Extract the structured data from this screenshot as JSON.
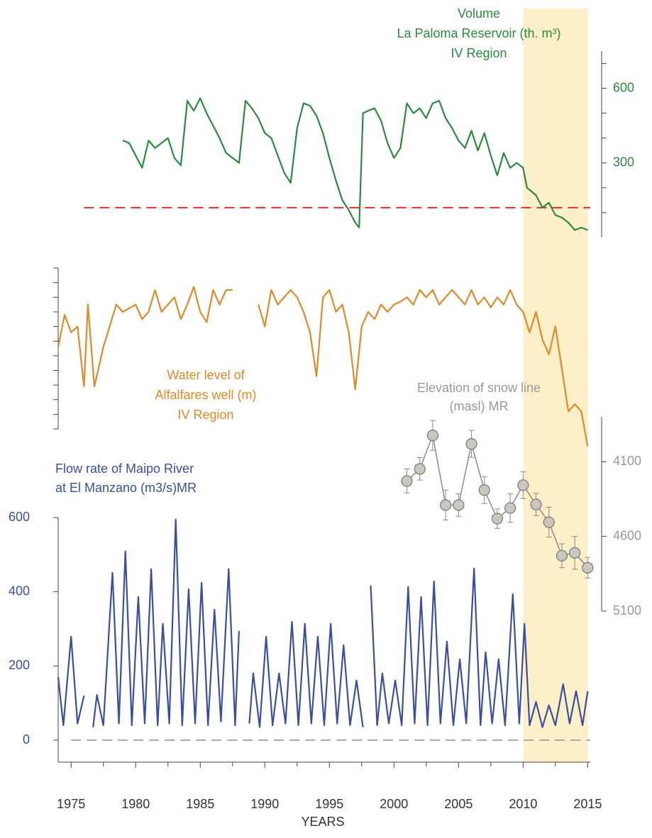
{
  "chart_data": [
    {
      "type": "line",
      "title_lines": [
        "Volume",
        "La Paloma Reservoir (th. m³)",
        "IV Region"
      ],
      "color": "#2a8a3e",
      "axis_side": "right",
      "ylim": [
        0,
        750
      ],
      "yticks": [
        300,
        600
      ],
      "yminorticks": [
        100,
        200,
        400,
        500,
        700
      ],
      "reference_line": 120,
      "reference_color": "#d9322b",
      "reference_from": 1976,
      "x": [
        1979,
        1979.5,
        1980,
        1980.5,
        1981,
        1981.5,
        1982,
        1982.5,
        1983,
        1983.5,
        1984,
        1984.5,
        1985,
        1985.5,
        1986,
        1986.5,
        1987,
        1987.5,
        1988,
        1988.5,
        1989,
        1989.5,
        1990,
        1990.5,
        1991,
        1991.5,
        1992,
        1992.5,
        1993,
        1993.5,
        1994,
        1994.5,
        1995,
        1995.5,
        1996,
        1996.5,
        1997,
        1997.3,
        1997.6,
        1998,
        1998.5,
        1999,
        1999.5,
        2000,
        2000.5,
        2001,
        2001.5,
        2002,
        2002.5,
        2003,
        2003.5,
        2004,
        2004.5,
        2005,
        2005.5,
        2006,
        2006.5,
        2007,
        2007.5,
        2008,
        2008.5,
        2009,
        2009.5,
        2010,
        2010.3,
        2011,
        2011.5,
        2012,
        2012.5,
        2013,
        2013.5,
        2014,
        2014.5,
        2015
      ],
      "values": [
        390,
        380,
        330,
        280,
        390,
        360,
        380,
        400,
        320,
        290,
        550,
        510,
        560,
        500,
        450,
        400,
        340,
        320,
        300,
        550,
        520,
        480,
        420,
        400,
        330,
        260,
        220,
        440,
        540,
        530,
        490,
        420,
        320,
        230,
        150,
        110,
        60,
        40,
        500,
        510,
        520,
        470,
        380,
        320,
        360,
        540,
        500,
        520,
        480,
        540,
        550,
        480,
        440,
        390,
        360,
        430,
        350,
        420,
        330,
        250,
        340,
        280,
        300,
        280,
        200,
        170,
        120,
        140,
        90,
        80,
        60,
        30,
        40,
        30
      ]
    },
    {
      "type": "line",
      "title_lines": [
        "Water level of",
        "Alfalfares well (m)",
        "IV Region"
      ],
      "color": "#e0892a",
      "axis_side": "left",
      "tick_labels": false,
      "ylim": [
        -1.5,
        11
      ],
      "yticks": [
        0,
        1,
        2,
        3,
        4,
        5,
        6,
        7,
        8,
        9,
        10,
        11
      ],
      "x": [
        1974,
        1974.5,
        1975,
        1975.5,
        1976,
        1976.3,
        1976.8,
        1977.5,
        1978.5,
        1979,
        1980,
        1980.5,
        1981,
        1981.5,
        1982,
        1983,
        1983.5,
        1984,
        1984.5,
        1985,
        1985.5,
        1986,
        1986.5,
        1987,
        1987.5,
        1988.5,
        1989.5,
        1990,
        1990.5,
        1991,
        1991.5,
        1992,
        1992.5,
        1993,
        1993.5,
        1994,
        1994.5,
        1995,
        1995.5,
        1996,
        1996.5,
        1997,
        1997.5,
        1998,
        1998.5,
        1999,
        1999.5,
        2000,
        2000.5,
        2001,
        2001.5,
        2002,
        2002.5,
        2003,
        2003.5,
        2004,
        2004.5,
        2005,
        2005.5,
        2006,
        2006.5,
        2007,
        2007.5,
        2008,
        2008.5,
        2009,
        2009.5,
        2010,
        2010.5,
        2011,
        2011.5,
        2012,
        2012.5,
        2013,
        2013.5,
        2014,
        2014.5,
        2015
      ],
      "values": [
        5.6,
        7.8,
        6.6,
        7.0,
        2.9,
        8.5,
        2.9,
        5.6,
        8.5,
        8.0,
        8.5,
        7.5,
        8.0,
        9.5,
        8.0,
        9.0,
        7.5,
        8.5,
        9.7,
        8.0,
        7.3,
        9.5,
        8.5,
        9.5,
        9.5,
        null,
        8.5,
        7.0,
        9.5,
        8.5,
        9.0,
        9.5,
        9.0,
        8.0,
        6.6,
        3.6,
        9.0,
        9.5,
        8.0,
        8.5,
        6.6,
        2.7,
        7.0,
        8.0,
        7.5,
        8.5,
        8.0,
        8.5,
        8.7,
        9.0,
        8.5,
        9.5,
        9.0,
        9.5,
        8.5,
        9.0,
        9.5,
        9.0,
        8.5,
        9.5,
        8.5,
        9.0,
        8.3,
        9.0,
        8.5,
        9.5,
        8.5,
        8.0,
        6.6,
        8.0,
        6.1,
        5.1,
        7.0,
        4.1,
        1.2,
        1.7,
        1.2,
        -1.2
      ]
    },
    {
      "type": "errorline",
      "title_lines": [
        "Elevation of snow line",
        "(masl) MR"
      ],
      "color": "#8a8a8a",
      "marker_color": "#c8c8c0",
      "axis_side": "right",
      "inverted": true,
      "ylim": [
        3800,
        5100
      ],
      "yticks": [
        4100,
        4600,
        5100
      ],
      "x": [
        2001,
        2002,
        2003,
        2004,
        2005,
        2006,
        2007,
        2008,
        2009,
        2010,
        2011,
        2012,
        2013,
        2014,
        2015
      ],
      "values": [
        4229,
        4148,
        3924,
        4390,
        4390,
        3981,
        4290,
        4481,
        4410,
        4257,
        4386,
        4505,
        4729,
        4710,
        4810
      ],
      "errors": [
        80,
        75,
        100,
        100,
        75,
        90,
        90,
        65,
        95,
        90,
        75,
        100,
        80,
        110,
        70
      ]
    },
    {
      "type": "line",
      "title_lines": [
        "Flow rate of Maipo River",
        "at El Manzano (m3/s)MR"
      ],
      "color": "#3a4fa0",
      "axis_side": "left",
      "ylim": [
        0,
        600
      ],
      "yticks": [
        0,
        200,
        400,
        600
      ],
      "reference_line": 0,
      "reference_color": "#aaaaaa",
      "reference_from": 1975,
      "xlim": [
        1974,
        2015.2
      ],
      "xticks": [
        1975,
        1980,
        1985,
        1990,
        1995,
        2000,
        2005,
        2010,
        2015
      ],
      "xminorticks": [
        1977.5,
        1982.5,
        1987.5,
        1992.5,
        1997.5,
        2002.5,
        2007.5,
        2012.5
      ],
      "xlabel": "YEARS",
      "highlight": [
        2010,
        2015
      ],
      "highlight_color": "#fdefc8",
      "x": [
        1974.0,
        1974.4,
        1975.0,
        1975.5,
        1976.0,
        1976.3,
        1976.7,
        1977.0,
        1977.5,
        1978.2,
        1978.7,
        1979.2,
        1979.7,
        1980.2,
        1980.7,
        1981.2,
        1981.7,
        1982.1,
        1982.6,
        1983.1,
        1983.6,
        1984.1,
        1984.6,
        1985.1,
        1985.6,
        1986.1,
        1986.6,
        1987.2,
        1987.7,
        1988.0,
        1988.4,
        1988.8,
        1989.1,
        1989.6,
        1990.1,
        1990.6,
        1991.1,
        1991.6,
        1992.1,
        1992.6,
        1993.1,
        1993.6,
        1994.1,
        1994.6,
        1995.1,
        1995.6,
        1996.1,
        1996.6,
        1997.1,
        1997.6,
        1997.8,
        1998.2,
        1998.7,
        1999.1,
        1999.6,
        2000.1,
        2000.6,
        2001.1,
        2001.6,
        2002.1,
        2002.6,
        2003.1,
        2003.6,
        2004.1,
        2004.6,
        2005.1,
        2005.6,
        2006.2,
        2006.7,
        2007.1,
        2007.6,
        2008.1,
        2008.6,
        2009.2,
        2009.7,
        2010.1,
        2010.5,
        2011.0,
        2011.5,
        2012.0,
        2012.5,
        2013.1,
        2013.6,
        2014.1,
        2014.6,
        2015.0
      ],
      "values": [
        170,
        40,
        279,
        45,
        120,
        null,
        35,
        122,
        40,
        451,
        45,
        509,
        40,
        386,
        45,
        461,
        40,
        314,
        45,
        595,
        40,
        407,
        45,
        424,
        40,
        352,
        50,
        461,
        40,
        294,
        null,
        45,
        180,
        35,
        279,
        40,
        180,
        45,
        319,
        40,
        314,
        45,
        279,
        40,
        314,
        45,
        256,
        40,
        161,
        35,
        null,
        417,
        40,
        180,
        45,
        161,
        40,
        413,
        45,
        386,
        40,
        428,
        45,
        266,
        40,
        218,
        45,
        463,
        40,
        237,
        45,
        218,
        40,
        394,
        45,
        314,
        40,
        103,
        35,
        94,
        40,
        151,
        45,
        132,
        40,
        132
      ]
    }
  ]
}
